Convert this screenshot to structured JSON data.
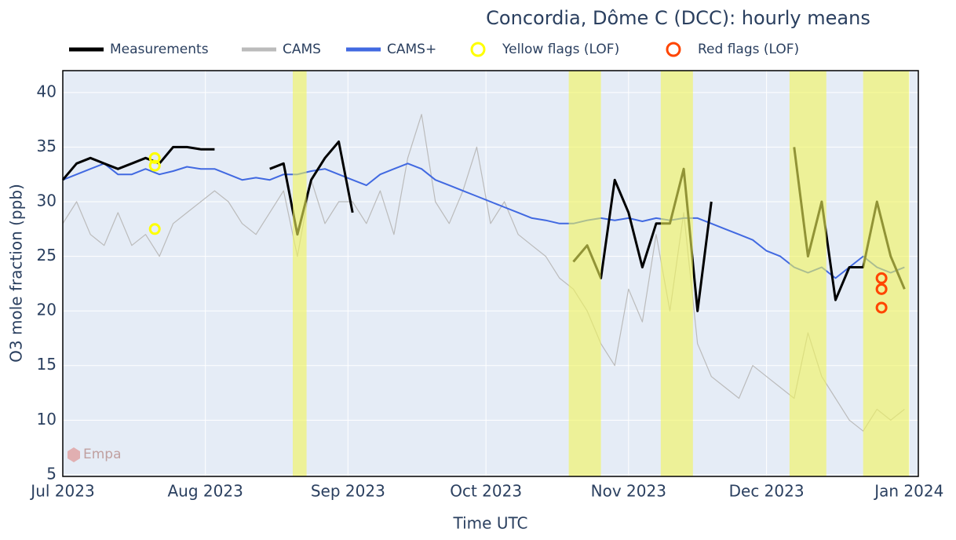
{
  "chart_data": {
    "type": "line",
    "title": "Concordia, Dôme C (DCC): hourly means",
    "x_label": "Time UTC",
    "y_label": "O3 mole fraction (ppb)",
    "watermark": "Empa",
    "x": [
      "2023-07-01",
      "2023-07-04",
      "2023-07-07",
      "2023-07-10",
      "2023-07-13",
      "2023-07-16",
      "2023-07-19",
      "2023-07-22",
      "2023-07-25",
      "2023-07-28",
      "2023-07-31",
      "2023-08-03",
      "2023-08-06",
      "2023-08-09",
      "2023-08-12",
      "2023-08-15",
      "2023-08-18",
      "2023-08-21",
      "2023-08-24",
      "2023-08-27",
      "2023-08-30",
      "2023-09-02",
      "2023-09-05",
      "2023-09-08",
      "2023-09-11",
      "2023-09-14",
      "2023-09-17",
      "2023-09-20",
      "2023-09-23",
      "2023-09-26",
      "2023-09-29",
      "2023-10-02",
      "2023-10-05",
      "2023-10-08",
      "2023-10-11",
      "2023-10-14",
      "2023-10-17",
      "2023-10-20",
      "2023-10-23",
      "2023-10-26",
      "2023-10-29",
      "2023-11-01",
      "2023-11-04",
      "2023-11-07",
      "2023-11-10",
      "2023-11-13",
      "2023-11-16",
      "2023-11-19",
      "2023-11-22",
      "2023-11-25",
      "2023-11-28",
      "2023-12-01",
      "2023-12-04",
      "2023-12-07",
      "2023-12-10",
      "2023-12-13",
      "2023-12-16",
      "2023-12-19",
      "2023-12-22",
      "2023-12-25",
      "2023-12-28",
      "2023-12-31"
    ],
    "series": [
      {
        "name": "CAMS",
        "color": "#bbbbbb",
        "width": 1.2,
        "values": [
          28,
          30,
          27,
          26,
          29,
          26,
          27,
          25,
          28,
          29,
          30,
          31,
          30,
          28,
          27,
          29,
          31,
          25,
          32,
          28,
          30,
          30,
          28,
          31,
          27,
          34,
          38,
          30,
          28,
          31,
          35,
          28,
          30,
          27,
          26,
          25,
          23,
          22,
          20,
          17,
          15,
          22,
          19,
          27,
          20,
          29,
          17,
          14,
          13,
          12,
          15,
          14,
          13,
          12,
          18,
          14,
          12,
          10,
          9,
          11,
          10,
          11
        ]
      },
      {
        "name": "CAMS+",
        "color": "#4169e1",
        "width": 2,
        "values": [
          32,
          32.5,
          33,
          33.5,
          32.5,
          32.5,
          33,
          32.5,
          32.8,
          33.2,
          33,
          33,
          32.5,
          32,
          32.2,
          32,
          32.5,
          32.5,
          32.8,
          33,
          32.5,
          32,
          31.5,
          32.5,
          33,
          33.5,
          33,
          32,
          31.5,
          31,
          30.5,
          30,
          29.5,
          29,
          28.5,
          28.3,
          28,
          28,
          28.3,
          28.5,
          28.3,
          28.5,
          28.2,
          28.5,
          28.3,
          28.5,
          28.5,
          28,
          27.5,
          27,
          26.5,
          25.5,
          25,
          24,
          23.5,
          24,
          23,
          24,
          25,
          24,
          23.5,
          24
        ]
      },
      {
        "name": "Measurements",
        "color": "#000000",
        "width": 3,
        "values": [
          32,
          33.5,
          34,
          33.5,
          33,
          33.5,
          34,
          33.5,
          35,
          35,
          34.8,
          34.8,
          null,
          null,
          null,
          33,
          33.5,
          27,
          32,
          34,
          35.5,
          29,
          null,
          null,
          null,
          null,
          null,
          null,
          null,
          null,
          null,
          null,
          null,
          null,
          null,
          null,
          null,
          24.5,
          26,
          23,
          32,
          29,
          24,
          28,
          28,
          33,
          20,
          30,
          null,
          null,
          null,
          null,
          null,
          35,
          25,
          30,
          21,
          24,
          24,
          30,
          25,
          22
        ]
      }
    ],
    "flags": [
      {
        "name": "Yellow flags (LOF)",
        "color": "#ffff00",
        "x": [
          "2023-07-21",
          "2023-07-21",
          "2023-07-21"
        ],
        "values": [
          34,
          33.3,
          27.5
        ]
      },
      {
        "name": "Red flags (LOF)",
        "color": "#ff4500",
        "x": [
          "2023-12-26",
          "2023-12-26",
          "2023-12-26"
        ],
        "values": [
          23,
          22,
          20.3
        ]
      }
    ],
    "shaded_periods": [
      [
        "2023-08-20",
        "2023-08-23"
      ],
      [
        "2023-10-19",
        "2023-10-26"
      ],
      [
        "2023-11-08",
        "2023-11-15"
      ],
      [
        "2023-12-06",
        "2023-12-14"
      ],
      [
        "2023-12-22",
        "2024-01-01"
      ]
    ],
    "shade_color": "#f2f55a",
    "xlim": [
      "2023-07-01",
      "2024-01-03"
    ],
    "ylim": [
      4.85,
      42
    ],
    "xticks": [
      {
        "value": "2023-07-01",
        "label": "Jul 2023"
      },
      {
        "value": "2023-08-01",
        "label": "Aug 2023"
      },
      {
        "value": "2023-09-01",
        "label": "Sep 2023"
      },
      {
        "value": "2023-10-01",
        "label": "Oct 2023"
      },
      {
        "value": "2023-11-01",
        "label": "Nov 2023"
      },
      {
        "value": "2023-12-01",
        "label": "Dec 2023"
      },
      {
        "value": "2024-01-01",
        "label": "Jan 2024"
      }
    ],
    "yticks": [
      5,
      10,
      15,
      20,
      25,
      30,
      35,
      40
    ],
    "grid": true
  }
}
